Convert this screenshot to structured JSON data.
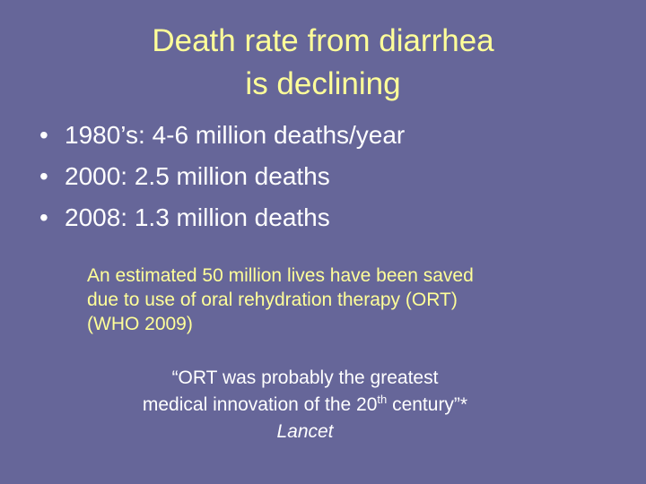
{
  "title": {
    "line1": "Death rate from diarrhea",
    "line2": "is declining"
  },
  "bullets": [
    {
      "marker": "•",
      "text": "1980’s:  4-6 million deaths/year"
    },
    {
      "marker": "•",
      "text": "2000: 2.5 million deaths"
    },
    {
      "marker": "•",
      "text": "2008: 1.3 million deaths"
    }
  ],
  "note": {
    "line1": "An estimated 50 million lives have been saved",
    "line2": "due to use of oral rehydration therapy (ORT)",
    "line3": "(WHO 2009)"
  },
  "quote": {
    "line1": "“ORT was probably the greatest",
    "line2_before": "medical innovation of the 20",
    "line2_sup": "th",
    "line2_after": " century”*",
    "source": "Lancet"
  },
  "colors": {
    "background": "#666699",
    "title": "#ffff99",
    "body_text": "#ffffff",
    "note_text": "#ffff99"
  }
}
